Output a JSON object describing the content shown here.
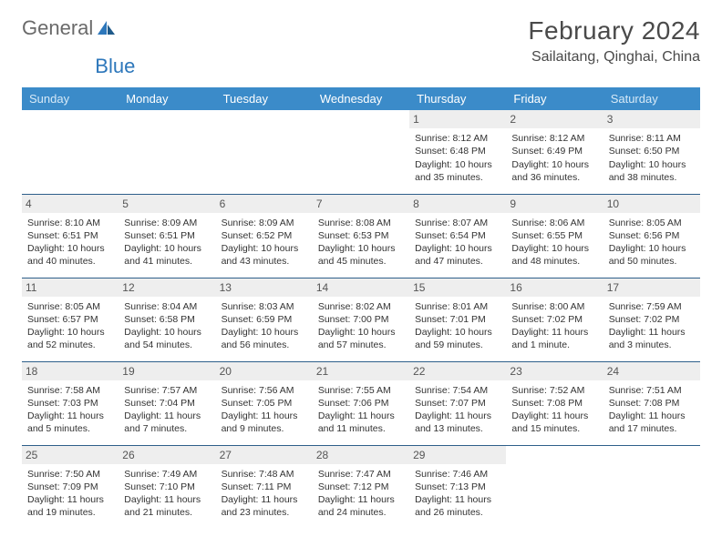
{
  "logo": {
    "general": "General",
    "blue": "Blue"
  },
  "title": "February 2024",
  "location": "Sailaitang, Qinghai, China",
  "header_color": "#3b8bc9",
  "accent_text": "#ffffff",
  "rule_color": "#2e5f8a",
  "daybar_color": "#eeeeee",
  "columns": [
    "Sunday",
    "Monday",
    "Tuesday",
    "Wednesday",
    "Thursday",
    "Friday",
    "Saturday"
  ],
  "first_weekday": 4,
  "days": [
    {
      "n": 1,
      "sr": "8:12 AM",
      "ss": "6:48 PM",
      "dl": "10 hours and 35 minutes."
    },
    {
      "n": 2,
      "sr": "8:12 AM",
      "ss": "6:49 PM",
      "dl": "10 hours and 36 minutes."
    },
    {
      "n": 3,
      "sr": "8:11 AM",
      "ss": "6:50 PM",
      "dl": "10 hours and 38 minutes."
    },
    {
      "n": 4,
      "sr": "8:10 AM",
      "ss": "6:51 PM",
      "dl": "10 hours and 40 minutes."
    },
    {
      "n": 5,
      "sr": "8:09 AM",
      "ss": "6:51 PM",
      "dl": "10 hours and 41 minutes."
    },
    {
      "n": 6,
      "sr": "8:09 AM",
      "ss": "6:52 PM",
      "dl": "10 hours and 43 minutes."
    },
    {
      "n": 7,
      "sr": "8:08 AM",
      "ss": "6:53 PM",
      "dl": "10 hours and 45 minutes."
    },
    {
      "n": 8,
      "sr": "8:07 AM",
      "ss": "6:54 PM",
      "dl": "10 hours and 47 minutes."
    },
    {
      "n": 9,
      "sr": "8:06 AM",
      "ss": "6:55 PM",
      "dl": "10 hours and 48 minutes."
    },
    {
      "n": 10,
      "sr": "8:05 AM",
      "ss": "6:56 PM",
      "dl": "10 hours and 50 minutes."
    },
    {
      "n": 11,
      "sr": "8:05 AM",
      "ss": "6:57 PM",
      "dl": "10 hours and 52 minutes."
    },
    {
      "n": 12,
      "sr": "8:04 AM",
      "ss": "6:58 PM",
      "dl": "10 hours and 54 minutes."
    },
    {
      "n": 13,
      "sr": "8:03 AM",
      "ss": "6:59 PM",
      "dl": "10 hours and 56 minutes."
    },
    {
      "n": 14,
      "sr": "8:02 AM",
      "ss": "7:00 PM",
      "dl": "10 hours and 57 minutes."
    },
    {
      "n": 15,
      "sr": "8:01 AM",
      "ss": "7:01 PM",
      "dl": "10 hours and 59 minutes."
    },
    {
      "n": 16,
      "sr": "8:00 AM",
      "ss": "7:02 PM",
      "dl": "11 hours and 1 minute."
    },
    {
      "n": 17,
      "sr": "7:59 AM",
      "ss": "7:02 PM",
      "dl": "11 hours and 3 minutes."
    },
    {
      "n": 18,
      "sr": "7:58 AM",
      "ss": "7:03 PM",
      "dl": "11 hours and 5 minutes."
    },
    {
      "n": 19,
      "sr": "7:57 AM",
      "ss": "7:04 PM",
      "dl": "11 hours and 7 minutes."
    },
    {
      "n": 20,
      "sr": "7:56 AM",
      "ss": "7:05 PM",
      "dl": "11 hours and 9 minutes."
    },
    {
      "n": 21,
      "sr": "7:55 AM",
      "ss": "7:06 PM",
      "dl": "11 hours and 11 minutes."
    },
    {
      "n": 22,
      "sr": "7:54 AM",
      "ss": "7:07 PM",
      "dl": "11 hours and 13 minutes."
    },
    {
      "n": 23,
      "sr": "7:52 AM",
      "ss": "7:08 PM",
      "dl": "11 hours and 15 minutes."
    },
    {
      "n": 24,
      "sr": "7:51 AM",
      "ss": "7:08 PM",
      "dl": "11 hours and 17 minutes."
    },
    {
      "n": 25,
      "sr": "7:50 AM",
      "ss": "7:09 PM",
      "dl": "11 hours and 19 minutes."
    },
    {
      "n": 26,
      "sr": "7:49 AM",
      "ss": "7:10 PM",
      "dl": "11 hours and 21 minutes."
    },
    {
      "n": 27,
      "sr": "7:48 AM",
      "ss": "7:11 PM",
      "dl": "11 hours and 23 minutes."
    },
    {
      "n": 28,
      "sr": "7:47 AM",
      "ss": "7:12 PM",
      "dl": "11 hours and 24 minutes."
    },
    {
      "n": 29,
      "sr": "7:46 AM",
      "ss": "7:13 PM",
      "dl": "11 hours and 26 minutes."
    }
  ],
  "labels": {
    "sunrise": "Sunrise: ",
    "sunset": "Sunset: ",
    "daylight": "Daylight: "
  }
}
